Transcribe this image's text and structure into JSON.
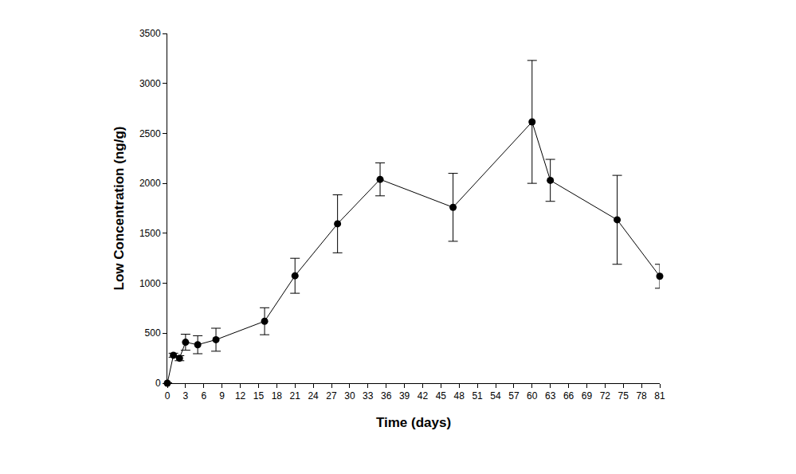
{
  "chart_data": {
    "type": "line",
    "x_label": "Time (days)",
    "y_label": "Low Concentration (ng/g)",
    "x": [
      0,
      1,
      2,
      3,
      5,
      8,
      16,
      21,
      28,
      35,
      47,
      60,
      63,
      74,
      81
    ],
    "values": [
      0,
      280,
      250,
      410,
      385,
      435,
      620,
      1075,
      1595,
      2040,
      1760,
      2615,
      2030,
      1635,
      1070
    ],
    "error": [
      5,
      20,
      25,
      80,
      90,
      115,
      135,
      175,
      290,
      165,
      340,
      615,
      210,
      445,
      120
    ],
    "color": "#000000",
    "marker": "circle",
    "line_style": "solid",
    "grid": false,
    "xlim": [
      0,
      81
    ],
    "xticks": [
      0,
      3,
      6,
      9,
      12,
      15,
      18,
      21,
      24,
      27,
      30,
      33,
      36,
      39,
      42,
      45,
      48,
      51,
      54,
      57,
      60,
      63,
      66,
      69,
      72,
      75,
      78,
      81
    ],
    "ylim": [
      0,
      3500
    ],
    "yticks": [
      0,
      500,
      1000,
      1500,
      2000,
      2500,
      3000,
      3500
    ]
  }
}
